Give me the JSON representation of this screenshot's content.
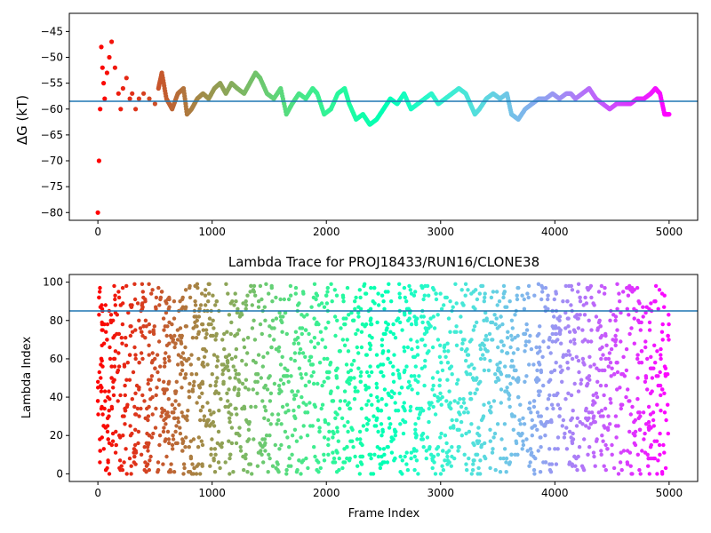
{
  "chart_data": [
    {
      "type": "scatter",
      "title": "",
      "xlabel": "",
      "ylabel": "ΔG (kT)",
      "xlim": [
        -250,
        5250
      ],
      "ylim": [
        -81.5,
        -41.5
      ],
      "xticks": [
        0,
        1000,
        2000,
        3000,
        4000,
        5000
      ],
      "yticks": [
        -80,
        -75,
        -70,
        -65,
        -60,
        -55,
        -50,
        -45
      ],
      "reference_line_y": -58.5,
      "reference_line_color": "#1f77b4",
      "colormap": "rainbow (frame 0 = red, frame 5000 = violet)",
      "series": [
        {
          "values_description": "running free-energy estimate per frame",
          "x": [
            0,
            10,
            20,
            30,
            40,
            50,
            60,
            80,
            100,
            120,
            150,
            180,
            200,
            220,
            250,
            280,
            300,
            330,
            360,
            400,
            450,
            500,
            530,
            560,
            600,
            650,
            700,
            750,
            780,
            820,
            870,
            920,
            970,
            1020,
            1070,
            1120,
            1170,
            1220,
            1280,
            1330,
            1380,
            1420,
            1480,
            1540,
            1600,
            1650,
            1700,
            1760,
            1820,
            1880,
            1920,
            1980,
            2040,
            2100,
            2160,
            2200,
            2260,
            2320,
            2380,
            2440,
            2500,
            2560,
            2620,
            2680,
            2740,
            2800,
            2860,
            2920,
            2980,
            3040,
            3100,
            3160,
            3220,
            3260,
            3300,
            3340,
            3400,
            3460,
            3520,
            3580,
            3620,
            3680,
            3740,
            3800,
            3860,
            3920,
            3980,
            4040,
            4100,
            4140,
            4180,
            4240,
            4300,
            4360,
            4420,
            4480,
            4540,
            4600,
            4660,
            4720,
            4780,
            4840,
            4880,
            4920,
            4960,
            5000
          ],
          "y": [
            -80,
            -70,
            -60,
            -48,
            -52,
            -55,
            -58,
            -53,
            -50,
            -47,
            -52,
            -57,
            -60,
            -56,
            -54,
            -58,
            -57,
            -60,
            -58,
            -57,
            -58,
            -59,
            -56,
            -53,
            -58,
            -60,
            -57,
            -56,
            -61,
            -60,
            -58,
            -57,
            -58,
            -56,
            -55,
            -57,
            -55,
            -56,
            -57,
            -55,
            -53,
            -54,
            -57,
            -58,
            -56,
            -61,
            -59,
            -57,
            -58,
            -56,
            -57,
            -61,
            -60,
            -57,
            -56,
            -59,
            -62,
            -61,
            -63,
            -62,
            -60,
            -58,
            -59,
            -57,
            -60,
            -59,
            -58,
            -57,
            -59,
            -58,
            -57,
            -56,
            -57,
            -59,
            -61,
            -60,
            -58,
            -57,
            -58,
            -57,
            -61,
            -62,
            -60,
            -59,
            -58,
            -58,
            -57,
            -58,
            -57,
            -57,
            -58,
            -57,
            -56,
            -58,
            -59,
            -60,
            -59,
            -59,
            -59,
            -58,
            -58,
            -57,
            -56,
            -57,
            -61,
            -61
          ]
        }
      ]
    },
    {
      "type": "scatter",
      "title": "Lambda Trace for PROJ18433/RUN16/CLONE38",
      "xlabel": "Frame Index",
      "ylabel": "Lambda Index",
      "xlim": [
        -250,
        5250
      ],
      "ylim": [
        -4,
        104
      ],
      "xticks": [
        0,
        1000,
        2000,
        3000,
        4000,
        5000
      ],
      "yticks": [
        0,
        20,
        40,
        60,
        80,
        100
      ],
      "reference_line_y": 85,
      "reference_line_color": "#1f77b4",
      "colormap": "rainbow (frame 0 = red, frame 5000 = violet)",
      "series": [
        {
          "values_description": "lambda state visited at each frame (dense band 0-99)",
          "x": [
            0,
            10,
            20,
            30,
            40,
            50,
            80,
            120,
            160,
            200,
            240,
            280,
            320,
            360,
            400,
            450,
            500,
            560,
            620,
            680,
            740,
            800,
            860,
            920,
            980,
            1040,
            1100,
            1160,
            1220,
            1280,
            1340,
            1400,
            1460,
            1520,
            1580,
            1640,
            1700,
            1760,
            1820,
            1880,
            1940,
            2000,
            2060,
            2120,
            2180,
            2240,
            2300,
            2360,
            2420,
            2480,
            2540,
            2600,
            2660,
            2720,
            2780,
            2840,
            2900,
            2960,
            3020,
            3080,
            3140,
            3200,
            3260,
            3320,
            3380,
            3440,
            3500,
            3560,
            3620,
            3680,
            3740,
            3800,
            3860,
            3920,
            3980,
            4040,
            4100,
            4160,
            4220,
            4280,
            4340,
            4400,
            4460,
            4520,
            4580,
            4640,
            4700,
            4760,
            4820,
            4880,
            4940,
            4990
          ],
          "y": [
            38,
            92,
            12,
            60,
            85,
            25,
            70,
            50,
            15,
            88,
            33,
            62,
            9,
            45,
            77,
            20,
            55,
            95,
            30,
            68,
            12,
            40,
            82,
            58,
            25,
            90,
            47,
            10,
            73,
            35,
            98,
            52,
            18,
            66,
            28,
            84,
            43,
            7,
            75,
            57,
            22,
            93,
            38,
            64,
            14,
            80,
            48,
            26,
            97,
            33,
            60,
            8,
            45,
            86,
            21,
            70,
            37,
            94,
            12,
            55,
            28,
            88,
            42,
            17,
            67,
            32,
            50,
            95,
            10,
            40,
            73,
            24,
            58,
            6,
            85,
            30,
            62,
            18,
            92,
            46,
            27,
            77,
            13,
            52,
            36,
            97,
            20,
            64,
            8,
            90,
            44,
            72
          ]
        }
      ]
    }
  ]
}
